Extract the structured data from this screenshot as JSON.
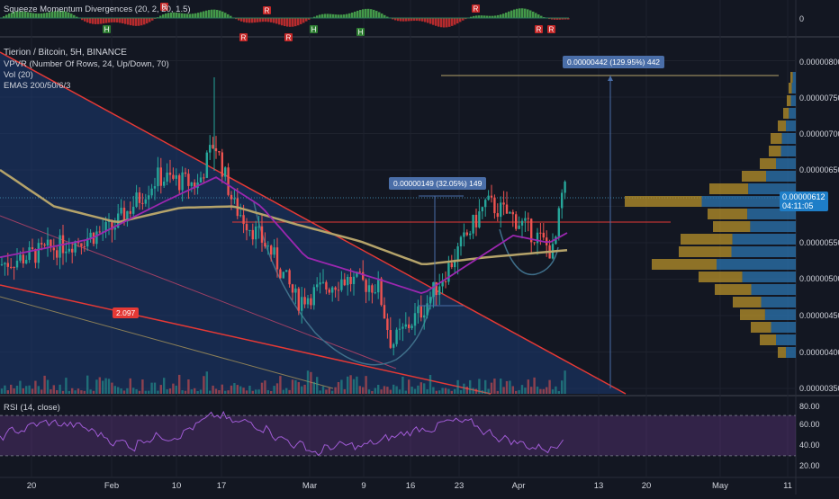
{
  "chart_data": {
    "type": "candlestick",
    "symbol_title": "Tierion / Bitcoin, 5H, BINANCE",
    "indicators": [
      "VPVR (Number Of Rows, 24, Up/Down, 70)",
      "Vol (20)",
      "EMAS 200/50/6/3"
    ],
    "oscillator_title": "Squeeze Momentum Divergences (20, 2, 20, 1.5)",
    "oscillator_value": "0",
    "rsi_title": "RSI (14, close)",
    "price_axis": [
      "0.00000800",
      "0.00000750",
      "0.00000700",
      "0.00000650",
      "0.00000550",
      "0.00000500",
      "0.00000450",
      "0.00000400",
      "0.00000350"
    ],
    "ylim": [
      3.45e-06,
      8.12e-06
    ],
    "rsi_axis": [
      "80.00",
      "60.00",
      "40.00",
      "20.00"
    ],
    "time_axis": [
      "20",
      "Feb",
      "10",
      "17",
      "Mar",
      "9",
      "16",
      "23",
      "Apr",
      "13",
      "20",
      "May",
      "11"
    ],
    "last_price": "0.00000612",
    "countdown": "04:11:05",
    "annotations": {
      "measure_small": "0.00000149 (32.05%) 149",
      "measure_large": "0.00000442 (129.95%) 442",
      "trendline_value": "2.097",
      "signal_markers": [
        "R",
        "R",
        "H",
        "R",
        "R",
        "H",
        "R",
        "H",
        "R",
        "R"
      ]
    },
    "colors": {
      "background": "#131722",
      "up": "#26a69a",
      "down": "#ef5350",
      "ema_fast": "#9c27b0",
      "ema_slow": "#b5a36a",
      "trend_red": "#e53935",
      "triangle_fill": "#1c3a73",
      "measure_blue": "#4a6ea8"
    }
  }
}
